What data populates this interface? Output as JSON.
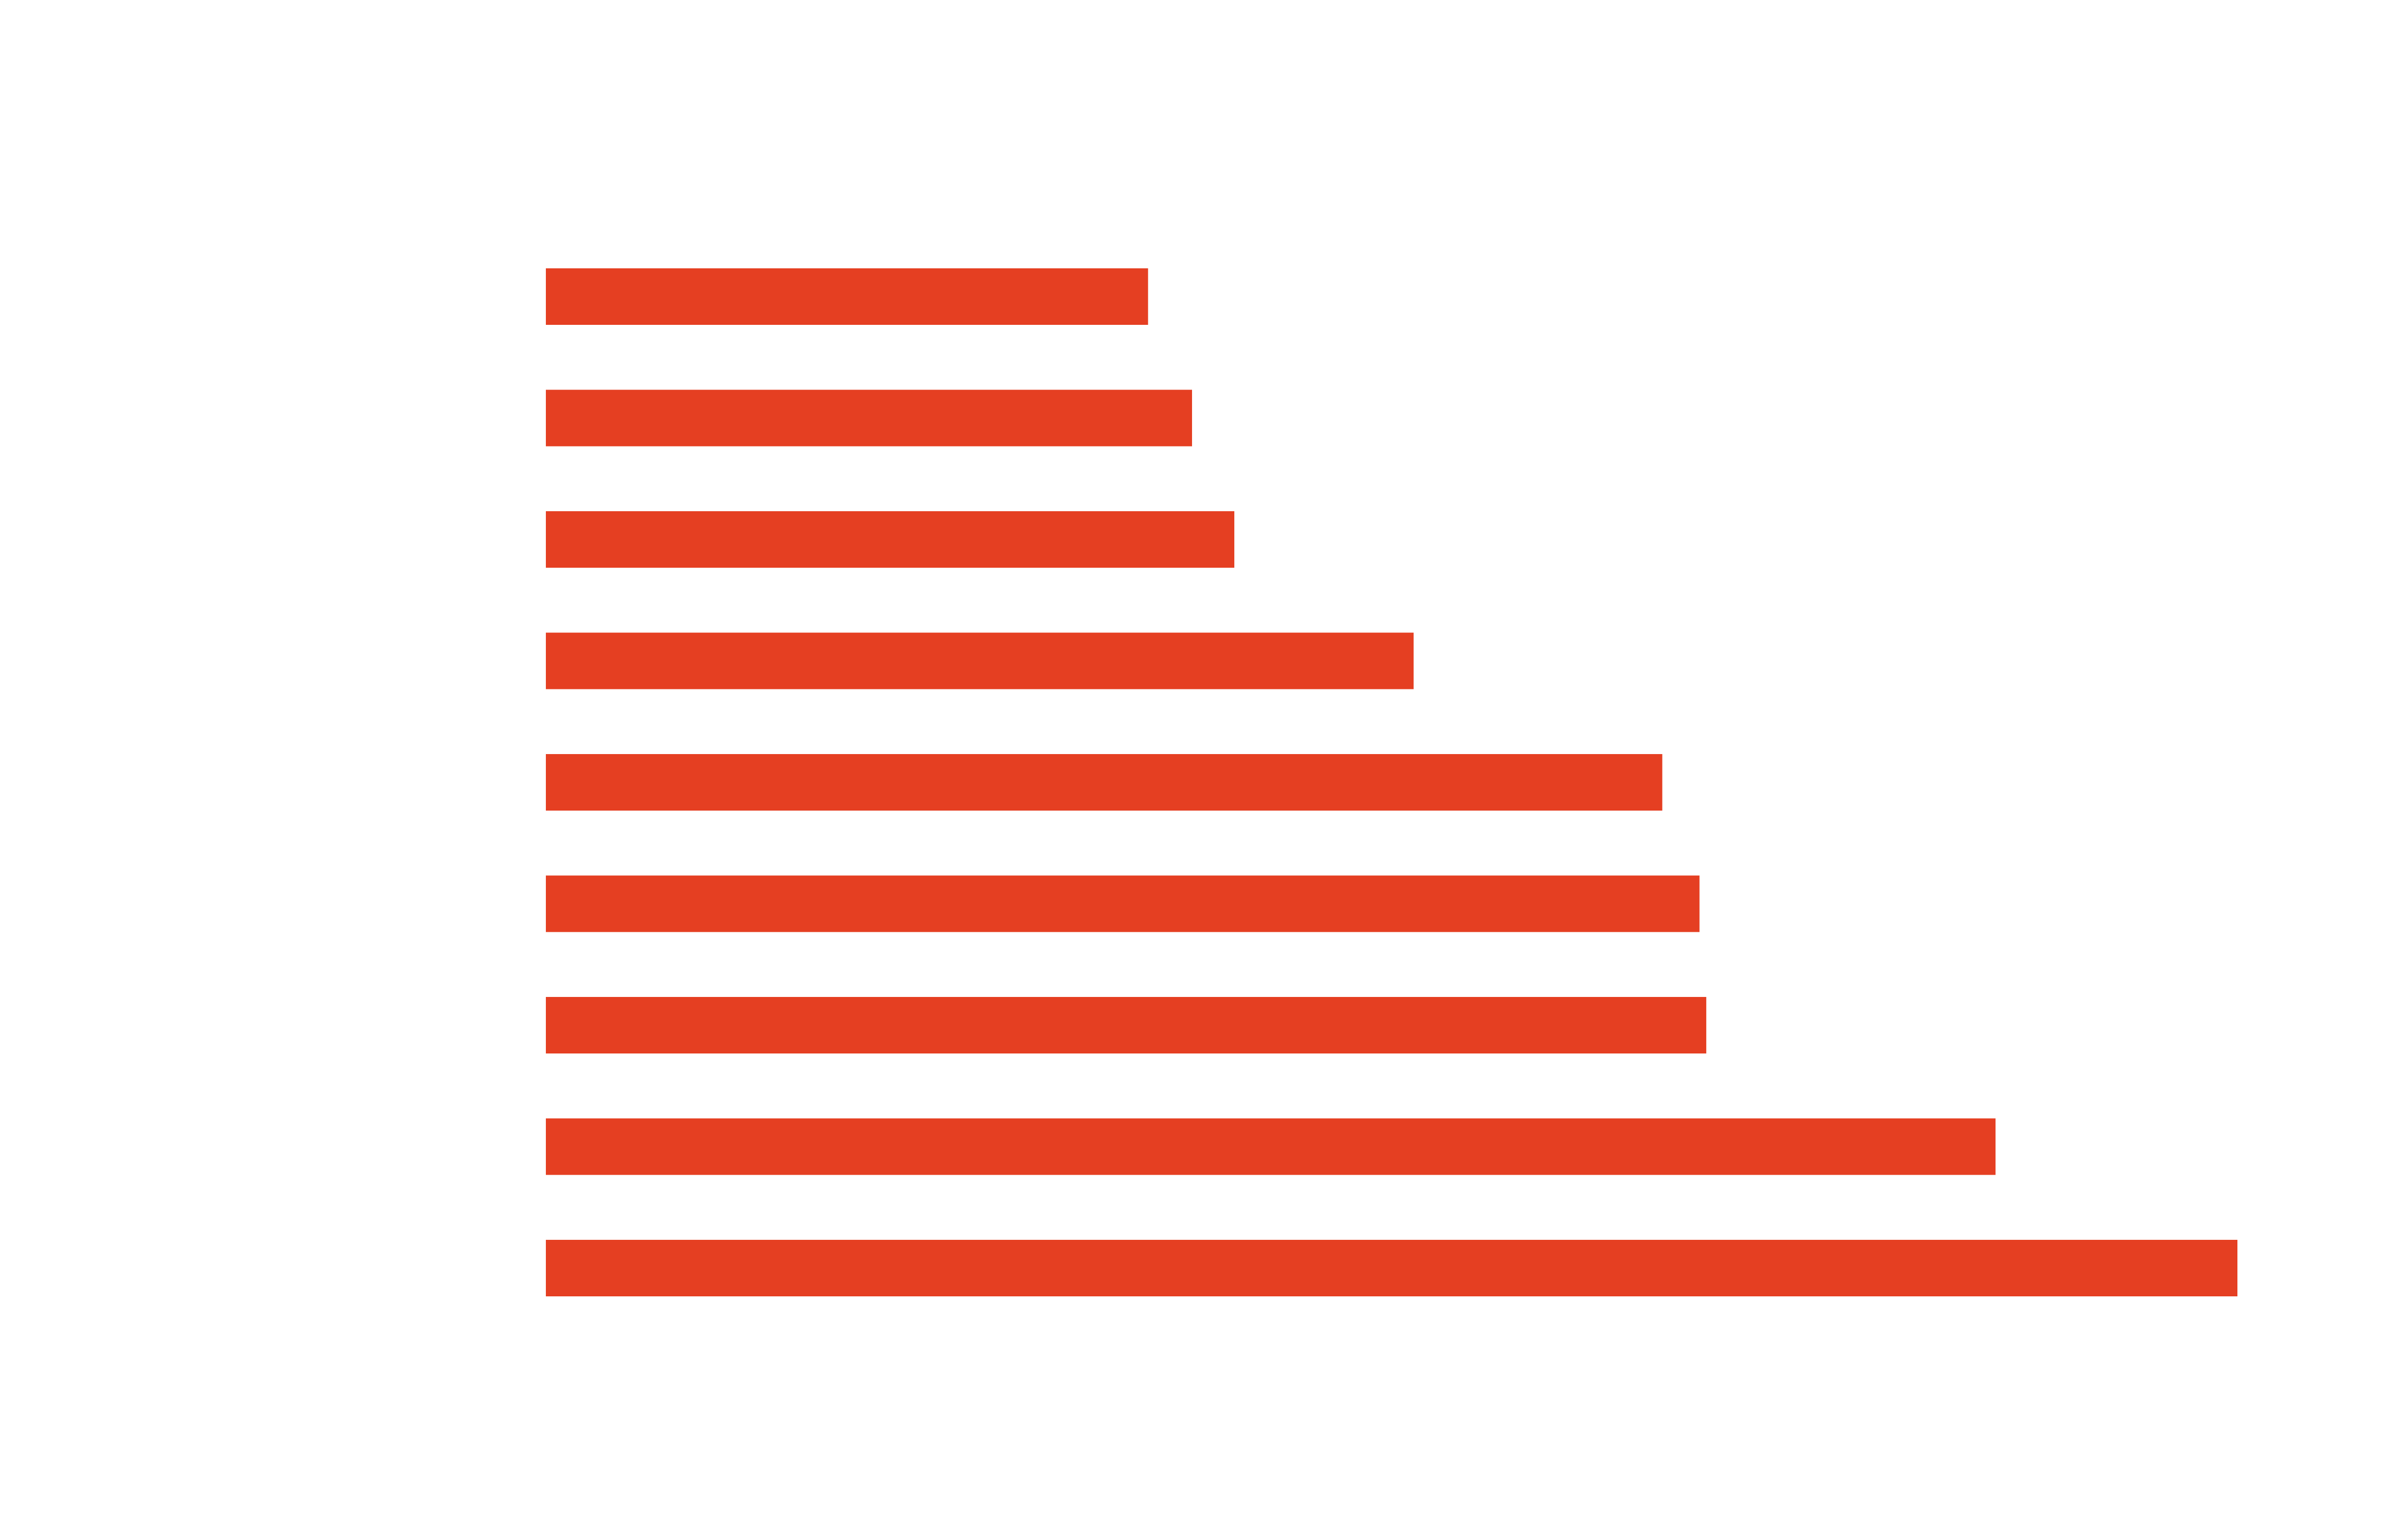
{
  "chart_data": {
    "type": "bar",
    "orientation": "horizontal",
    "title": "",
    "xlabel": "",
    "ylabel": "",
    "categories": [
      "",
      "",
      "",
      "",
      "",
      "",
      "",
      "",
      ""
    ],
    "values": [
      35.6,
      38.2,
      40.7,
      51.3,
      66.0,
      68.2,
      68.6,
      85.7,
      100.0
    ],
    "xlim": [
      0,
      100
    ],
    "grid": false,
    "legend": "none",
    "bar_color": "#e53f22"
  }
}
